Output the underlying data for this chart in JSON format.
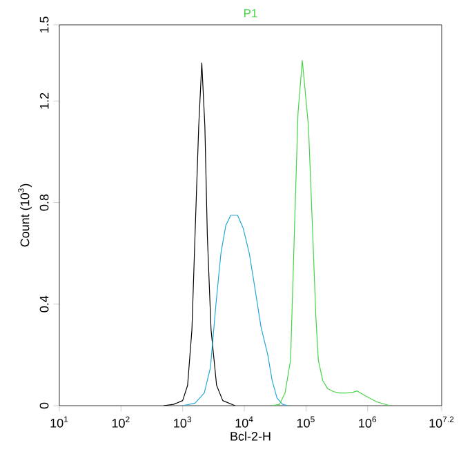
{
  "chart_data": {
    "type": "line",
    "title": "P1",
    "xlabel": "Bcl-2-H",
    "ylabel": "Count (10$^{3}$)",
    "log": "x",
    "xlim": [
      10,
      15848932
    ],
    "ylim": [
      0,
      1.5
    ],
    "xticks": [
      {
        "value": 10,
        "label": "10$^{1}$"
      },
      {
        "value": 100,
        "label": "10$^{2}$"
      },
      {
        "value": 1000,
        "label": "10$^{3}$"
      },
      {
        "value": 10000,
        "label": "10$^{4}$"
      },
      {
        "value": 100000,
        "label": "10$^{5}$"
      },
      {
        "value": 1000000,
        "label": "10$^{6}$"
      },
      {
        "value": 15848932,
        "label": "10$^{7.2}$"
      }
    ],
    "yticks": [
      0,
      0.4,
      0.8,
      1.2,
      1.5
    ],
    "grid": false,
    "marker": "none",
    "line_style": "solid",
    "series": [
      {
        "color": "#000000",
        "x": [
          490,
          708,
          1000,
          1202,
          1413,
          1585,
          1820,
          2042,
          2291,
          2512,
          2884,
          3548,
          4467,
          7079
        ],
        "values": [
          0,
          0.005,
          0.02,
          0.08,
          0.3,
          0.67,
          1.1,
          1.35,
          1.1,
          0.67,
          0.3,
          0.08,
          0.02,
          0
        ]
      },
      {
        "color": "#1fa8d8",
        "x": [
          1000,
          1585,
          2239,
          2818,
          3467,
          4169,
          5012,
          6026,
          7762,
          9550,
          12023,
          15136,
          18621,
          23988,
          28184,
          33884,
          41687,
          51286
        ],
        "values": [
          0,
          0.01,
          0.05,
          0.15,
          0.4,
          0.6,
          0.71,
          0.75,
          0.75,
          0.7,
          0.6,
          0.45,
          0.31,
          0.2,
          0.1,
          0.03,
          0.005,
          0
        ]
      },
      {
        "color": "#44d444",
        "x": [
          28184,
          37154,
          45709,
          56234,
          64565,
          74131,
          87096,
          109648,
          128825,
          144544,
          158489,
          186209,
          223872,
          281838,
          354813,
          446684,
          562341,
          676083,
          831764,
          1071519,
          1412538,
          2290868
        ],
        "values": [
          0,
          0.005,
          0.05,
          0.18,
          0.67,
          1.15,
          1.36,
          1.1,
          0.67,
          0.35,
          0.18,
          0.1,
          0.067,
          0.055,
          0.05,
          0.05,
          0.052,
          0.058,
          0.045,
          0.03,
          0.015,
          0
        ]
      }
    ]
  }
}
